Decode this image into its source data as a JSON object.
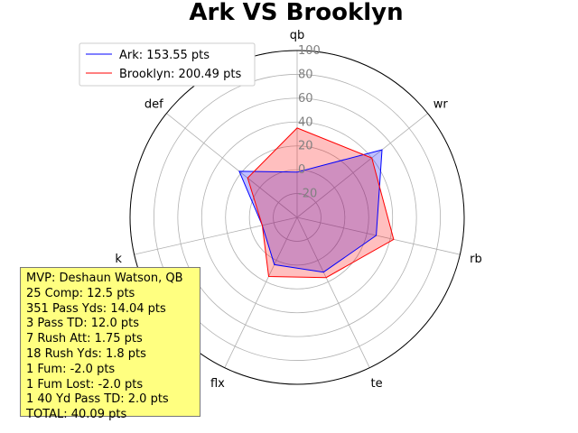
{
  "chart_data": {
    "type": "radar",
    "title": "Ark VS Brooklyn",
    "axes": [
      "qb",
      "wr",
      "rb",
      "te",
      "flx",
      "k",
      "def"
    ],
    "r_ticks": [
      "-20",
      "0",
      "20",
      "40",
      "60",
      "80",
      "100"
    ],
    "r_tick_values": [
      -20,
      0,
      20,
      40,
      60,
      80,
      100
    ],
    "rlim": [
      -40,
      100
    ],
    "grid": true,
    "legend_position": "top-left",
    "series": [
      {
        "name": "Ark: 153.55 pts",
        "values": [
          -2,
          51,
          28,
          11,
          4,
          -10,
          22
        ],
        "color": "#0000ff",
        "fill": "#0000ff"
      },
      {
        "name": "Brooklyn: 200.49 pts",
        "values": [
          35,
          40,
          43,
          16,
          15,
          -10,
          13
        ],
        "color": "#ff0000",
        "fill": "#ff0000"
      }
    ]
  },
  "mvp_box": {
    "lines": [
      "MVP: Deshaun Watson, QB",
      "25 Comp: 12.5 pts",
      "351 Pass Yds: 14.04 pts",
      "3 Pass TD: 12.0 pts",
      "7 Rush Att: 1.75 pts",
      "18 Rush Yds: 1.8 pts",
      "1 Fum: -2.0 pts",
      "1 Fum Lost: -2.0 pts",
      "1 40 Yd Pass TD: 2.0 pts",
      "TOTAL: 40.09 pts"
    ],
    "background": "#ffff80"
  }
}
